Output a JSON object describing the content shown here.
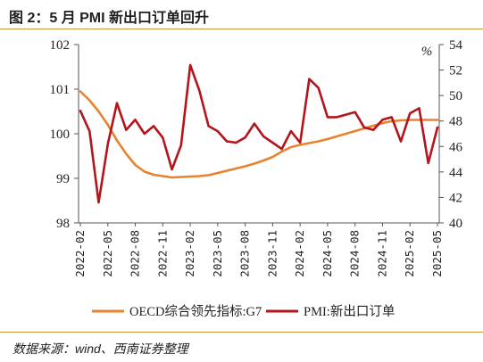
{
  "title": "图 2：5 月 PMI 新出口订单回升",
  "source": "数据来源：wind、西南证券整理",
  "colors": {
    "oecd": "#e8822e",
    "pmi": "#b3151b",
    "rule": "#c8963c"
  },
  "chart_data": {
    "type": "line",
    "title": "",
    "xlabel": "",
    "ylabel_left": "",
    "ylabel_right": "%",
    "ylim_left": [
      98,
      102
    ],
    "ylim_right": [
      40,
      54
    ],
    "yticks_left": [
      98,
      99,
      100,
      101,
      102
    ],
    "yticks_right": [
      40,
      42,
      44,
      46,
      48,
      50,
      52,
      54
    ],
    "grid": false,
    "legend_position": "bottom",
    "x_tick_labels": [
      "2022-02",
      "2022-05",
      "2022-08",
      "2022-11",
      "2023-02",
      "2023-05",
      "2023-08",
      "2023-11",
      "2024-02",
      "2024-05",
      "2024-08",
      "2024-11",
      "2025-02",
      "2025-05"
    ],
    "x": [
      "2022-02",
      "2022-03",
      "2022-04",
      "2022-05",
      "2022-06",
      "2022-07",
      "2022-08",
      "2022-09",
      "2022-10",
      "2022-11",
      "2022-12",
      "2023-01",
      "2023-02",
      "2023-03",
      "2023-04",
      "2023-05",
      "2023-06",
      "2023-07",
      "2023-08",
      "2023-09",
      "2023-10",
      "2023-11",
      "2023-12",
      "2024-01",
      "2024-02",
      "2024-03",
      "2024-04",
      "2024-05",
      "2024-06",
      "2024-07",
      "2024-08",
      "2024-09",
      "2024-10",
      "2024-11",
      "2024-12",
      "2025-01",
      "2025-02",
      "2025-03",
      "2025-04",
      "2025-05"
    ],
    "series": [
      {
        "name": "OECD综合领先指标:G7",
        "axis": "left",
        "values": [
          100.95,
          100.75,
          100.5,
          100.2,
          99.85,
          99.55,
          99.3,
          99.15,
          99.08,
          99.05,
          99.02,
          99.03,
          99.04,
          99.05,
          99.07,
          99.12,
          99.17,
          99.22,
          99.27,
          99.33,
          99.4,
          99.48,
          99.6,
          99.7,
          99.75,
          99.79,
          99.83,
          99.88,
          99.94,
          100.0,
          100.06,
          100.12,
          100.18,
          100.24,
          100.28,
          100.3,
          100.31,
          100.31,
          100.31,
          100.31
        ]
      },
      {
        "name": "PMI:新出口订单",
        "axis": "right",
        "values": [
          48.8,
          47.2,
          41.6,
          46.2,
          49.4,
          47.3,
          48.1,
          47.0,
          47.6,
          46.7,
          44.2,
          46.1,
          52.4,
          50.4,
          47.6,
          47.2,
          46.4,
          46.3,
          46.7,
          47.8,
          46.8,
          46.3,
          45.8,
          47.2,
          46.3,
          51.3,
          50.6,
          48.3,
          48.3,
          48.5,
          48.7,
          47.5,
          47.3,
          48.1,
          48.3,
          46.4,
          48.6,
          49.0,
          44.7,
          47.5
        ]
      }
    ]
  }
}
